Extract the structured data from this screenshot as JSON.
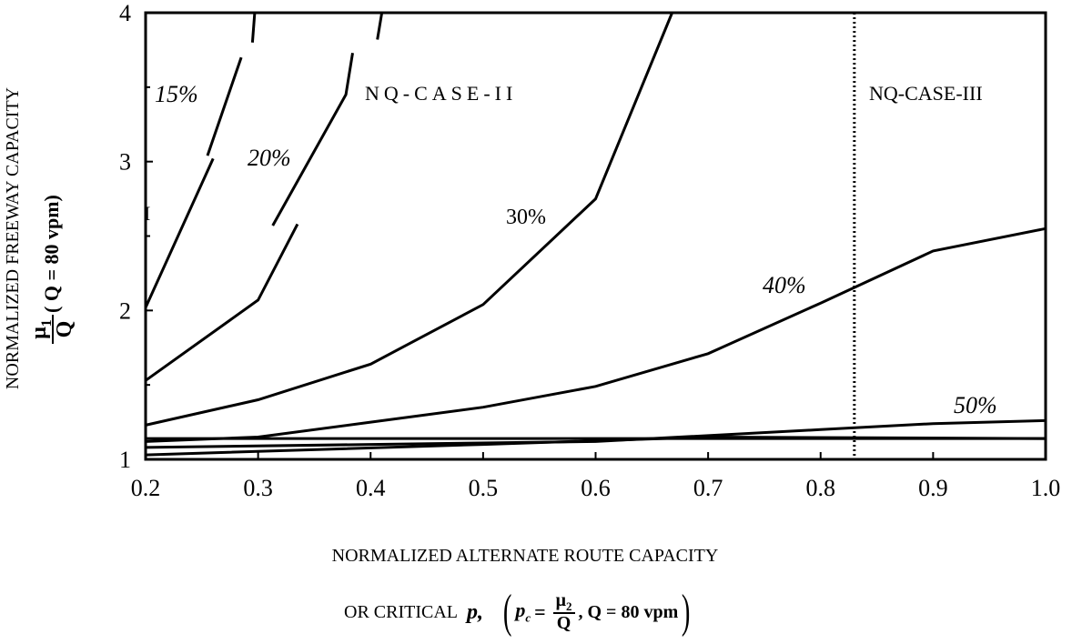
{
  "chart_data": {
    "type": "line",
    "xlim": [
      0.2,
      1.0
    ],
    "ylim": [
      1,
      4
    ],
    "x_ticks": [
      "0.2",
      "0.3",
      "0.4",
      "0.5",
      "0.6",
      "0.7",
      "0.8",
      "0.9",
      "1.0"
    ],
    "y_ticks": [
      "1",
      "2",
      "3",
      "4"
    ],
    "ylabel_top": "NORMALIZED FREEWAY CAPACITY",
    "ylabel_frac_num": "μ",
    "ylabel_frac_num_sub": "1",
    "ylabel_frac_den": "Q",
    "ylabel_rest": "( Q = 80 vpm)",
    "xlabel_line1": "NORMALIZED ALTERNATE ROUTE CAPACITY",
    "xlabel_line2_prefix": "OR  CRITICAL",
    "xlabel_line2_p": "p,",
    "xlabel_line2_pc": "p",
    "xlabel_line2_pc_sub": "c",
    "xlabel_line2_eq": "=",
    "xlabel_line2_frac_num": "μ",
    "xlabel_line2_frac_num_sub": "2",
    "xlabel_line2_frac_den": "Q",
    "xlabel_line2_suffix": ",  Q = 80 vpm",
    "region_labels": [
      "NQ-CASE-II",
      "NQ-CASE-III",
      "I"
    ],
    "boundary_x": 0.83,
    "series": [
      {
        "name": "15%",
        "segments": [
          [
            [
              0.2,
              2.02
            ],
            [
              0.26,
              3.02
            ]
          ],
          [
            [
              0.255,
              3.04
            ],
            [
              0.285,
              3.7
            ]
          ],
          [
            [
              0.295,
              3.8
            ],
            [
              0.297,
              4.0
            ]
          ]
        ]
      },
      {
        "name": "20%",
        "segments": [
          [
            [
              0.2,
              1.53
            ],
            [
              0.3,
              2.07
            ],
            [
              0.335,
              2.58
            ]
          ],
          [
            [
              0.313,
              2.57
            ],
            [
              0.378,
              3.45
            ],
            [
              0.384,
              3.73
            ]
          ],
          [
            [
              0.406,
              3.82
            ],
            [
              0.41,
              4.0
            ]
          ]
        ]
      },
      {
        "name": "30%",
        "segments": [
          [
            [
              0.2,
              1.23
            ],
            [
              0.3,
              1.4
            ],
            [
              0.4,
              1.64
            ],
            [
              0.5,
              2.04
            ],
            [
              0.6,
              2.75
            ],
            [
              0.668,
              4.0
            ]
          ]
        ]
      },
      {
        "name": "40%",
        "segments": [
          [
            [
              0.2,
              1.12
            ],
            [
              0.3,
              1.15
            ],
            [
              0.4,
              1.25
            ],
            [
              0.5,
              1.35
            ],
            [
              0.6,
              1.49
            ],
            [
              0.7,
              1.71
            ],
            [
              0.8,
              2.05
            ],
            [
              0.9,
              2.4
            ],
            [
              1.0,
              2.55
            ]
          ]
        ]
      },
      {
        "name": "50%",
        "segments": [
          [
            [
              0.2,
              1.08
            ],
            [
              0.4,
              1.1
            ],
            [
              0.6,
              1.12
            ],
            [
              0.8,
              1.2
            ],
            [
              0.9,
              1.24
            ],
            [
              1.0,
              1.26
            ]
          ]
        ]
      },
      {
        "name": "",
        "segments": [
          [
            [
              0.2,
              1.14
            ],
            [
              1.0,
              1.14
            ]
          ]
        ]
      },
      {
        "name": "",
        "segments": [
          [
            [
              0.2,
              1.03
            ],
            [
              0.5,
              1.1
            ],
            [
              0.7,
              1.15
            ],
            [
              1.0,
              1.14
            ]
          ]
        ]
      }
    ],
    "series_labels": [
      "15%",
      "20%",
      "30%",
      "40%",
      "50%"
    ]
  }
}
